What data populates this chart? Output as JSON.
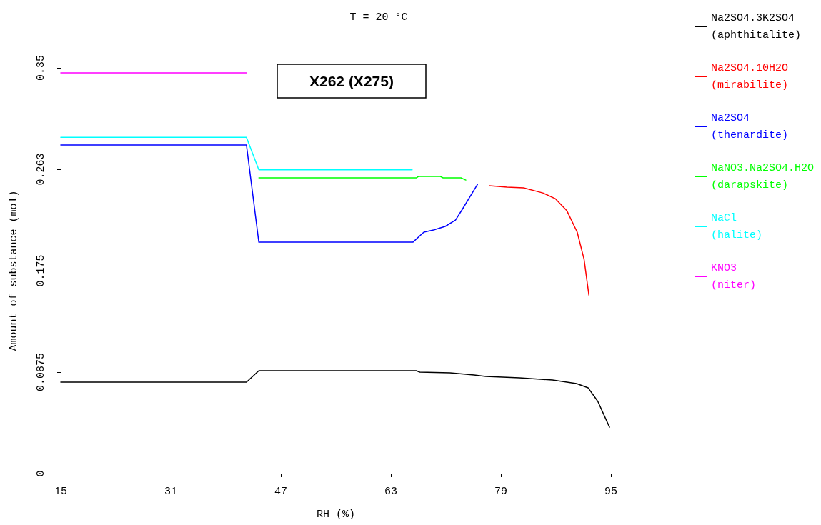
{
  "chart_data": {
    "type": "line",
    "title": "T = 20 °C",
    "xlabel": "RH (%)",
    "ylabel": "Amount of substance (mol)",
    "annotations": [
      "X262 (X275)"
    ],
    "xlim": [
      15,
      95
    ],
    "xticks": [
      15,
      31,
      47,
      63,
      79,
      95
    ],
    "ylim": [
      0,
      0.35
    ],
    "yticks": [
      0,
      0.0875,
      0.175,
      {
        "value": 0.2625,
        "label": "0.263"
      },
      0.35
    ],
    "grid": false,
    "legend": "top right",
    "marker": "none",
    "line_style": "solid",
    "series": [
      {
        "name": "Na2SO4.3K2SO4\n(aphthitalite)",
        "color": "#000000",
        "x": [
          15,
          42,
          43.8,
          66.7,
          67.2,
          71.6,
          75.1,
          76.8,
          81.7,
          86.5,
          90.0,
          91.7,
          93.1,
          94.8
        ],
        "values": [
          0.0789,
          0.0789,
          0.0887,
          0.0887,
          0.0875,
          0.0869,
          0.085,
          0.0838,
          0.0826,
          0.0807,
          0.0776,
          0.0739,
          0.0622,
          0.04
        ]
      },
      {
        "name": "Na2SO4.10H2O\n(mirabilite)",
        "color": "#ff0000",
        "x": [
          77.3,
          79.9,
          82.3,
          85.1,
          86.9,
          88.6,
          90.1,
          91.1,
          91.8
        ],
        "values": [
          0.2483,
          0.2471,
          0.2465,
          0.2421,
          0.2372,
          0.2267,
          0.2083,
          0.1848,
          0.154
        ]
      },
      {
        "name": "Na2SO4\n(thenardite)",
        "color": "#0000ff",
        "x": [
          15,
          42,
          43.8,
          66.2,
          67.8,
          69.2,
          70.9,
          72.4,
          73.4,
          74.4,
          75.6
        ],
        "values": [
          0.2834,
          0.2834,
          0.1996,
          0.1996,
          0.2083,
          0.2101,
          0.2132,
          0.2187,
          0.228,
          0.2378,
          0.2495
        ]
      },
      {
        "name": "NaNO3.Na2SO4.H2O\n(darapskite)",
        "color": "#00ff00",
        "x": [
          43.8,
          66.7,
          67.0,
          70.2,
          70.6,
          73.2,
          73.9
        ],
        "values": [
          0.2551,
          0.2551,
          0.2563,
          0.2563,
          0.2551,
          0.2551,
          0.2532
        ]
      },
      {
        "name": "NaCl\n(halite)",
        "color": "#00ffff",
        "x": [
          15,
          42,
          43.8,
          66.1
        ],
        "values": [
          0.29,
          0.29,
          0.262,
          0.262
        ]
      },
      {
        "name": "KNO3\n(niter)",
        "color": "#ff00ff",
        "x": [
          15,
          42
        ],
        "values": [
          0.3457,
          0.3457
        ]
      }
    ]
  }
}
